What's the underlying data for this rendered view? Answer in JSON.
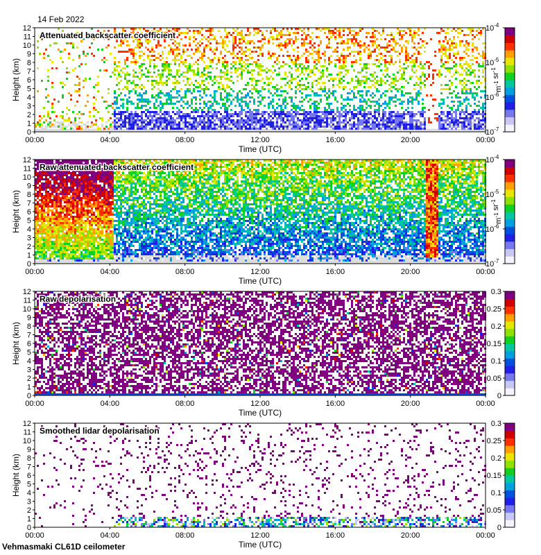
{
  "header": {
    "date": "14 Feb 2022"
  },
  "footer": {
    "site": "Vehmasmaki CL61D ceilometer"
  },
  "colors": {
    "background": "#dcdcdc",
    "colormap": [
      "#f4f4ff",
      "#c8c8f5",
      "#7878ee",
      "#1f1fe6",
      "#0050e0",
      "#00a0e0",
      "#00c8a0",
      "#10d020",
      "#90e000",
      "#e6e600",
      "#ffa000",
      "#ff3000",
      "#d00000",
      "#800080"
    ]
  },
  "chart_data": [
    {
      "type": "heatmap",
      "title": "Attenuated backscatter coefficient",
      "xlabel": "Time (UTC)",
      "ylabel": "Height (km)",
      "xlim": [
        0,
        24
      ],
      "ylim": [
        0,
        12
      ],
      "xticks": [
        "00:00",
        "04:00",
        "08:00",
        "12:00",
        "16:00",
        "20:00",
        "00:00"
      ],
      "yticks": [
        "0",
        "1",
        "2",
        "3",
        "4",
        "5",
        "6",
        "7",
        "8",
        "9",
        "10",
        "11",
        "12"
      ],
      "colorbar": {
        "scale": "log",
        "ticks": [
          "10-7",
          "10-6",
          "10-5",
          "10-4"
        ],
        "unit": "m-1 sr-1"
      }
    },
    {
      "type": "heatmap",
      "title": "Raw attenuated backscatter coefficient",
      "xlabel": "Time (UTC)",
      "ylabel": "Height (km)",
      "xlim": [
        0,
        24
      ],
      "ylim": [
        0,
        12
      ],
      "xticks": [
        "00:00",
        "04:00",
        "08:00",
        "12:00",
        "16:00",
        "20:00",
        "00:00"
      ],
      "yticks": [
        "0",
        "1",
        "2",
        "3",
        "4",
        "5",
        "6",
        "7",
        "8",
        "9",
        "10",
        "11",
        "12"
      ],
      "colorbar": {
        "scale": "log",
        "ticks": [
          "10-7",
          "10-6",
          "10-5",
          "10-4"
        ],
        "unit": "m-1 sr-1"
      }
    },
    {
      "type": "heatmap",
      "title": "Raw depolarisation",
      "xlabel": "Time (UTC)",
      "ylabel": "Height (km)",
      "xlim": [
        0,
        24
      ],
      "ylim": [
        0,
        12
      ],
      "xticks": [
        "00:00",
        "04:00",
        "08:00",
        "12:00",
        "16:00",
        "20:00",
        "00:00"
      ],
      "yticks": [
        "0",
        "1",
        "2",
        "3",
        "4",
        "5",
        "6",
        "7",
        "8",
        "9",
        "10",
        "11",
        "12"
      ],
      "colorbar": {
        "scale": "linear",
        "ticks": [
          "0",
          "0.05",
          "0.1",
          "0.15",
          "0.2",
          "0.25",
          "0.3"
        ],
        "unit": ""
      }
    },
    {
      "type": "heatmap",
      "title": "Smoothed lidar depolarisation",
      "xlabel": "Time (UTC)",
      "ylabel": "Height (km)",
      "xlim": [
        0,
        24
      ],
      "ylim": [
        0,
        12
      ],
      "xticks": [
        "00:00",
        "04:00",
        "08:00",
        "12:00",
        "16:00",
        "20:00",
        "00:00"
      ],
      "yticks": [
        "0",
        "1",
        "2",
        "3",
        "4",
        "5",
        "6",
        "7",
        "8",
        "9",
        "10",
        "11",
        "12"
      ],
      "colorbar": {
        "scale": "linear",
        "ticks": [
          "0",
          "0.05",
          "0.1",
          "0.15",
          "0.2",
          "0.25",
          "0.3"
        ],
        "unit": ""
      }
    }
  ]
}
